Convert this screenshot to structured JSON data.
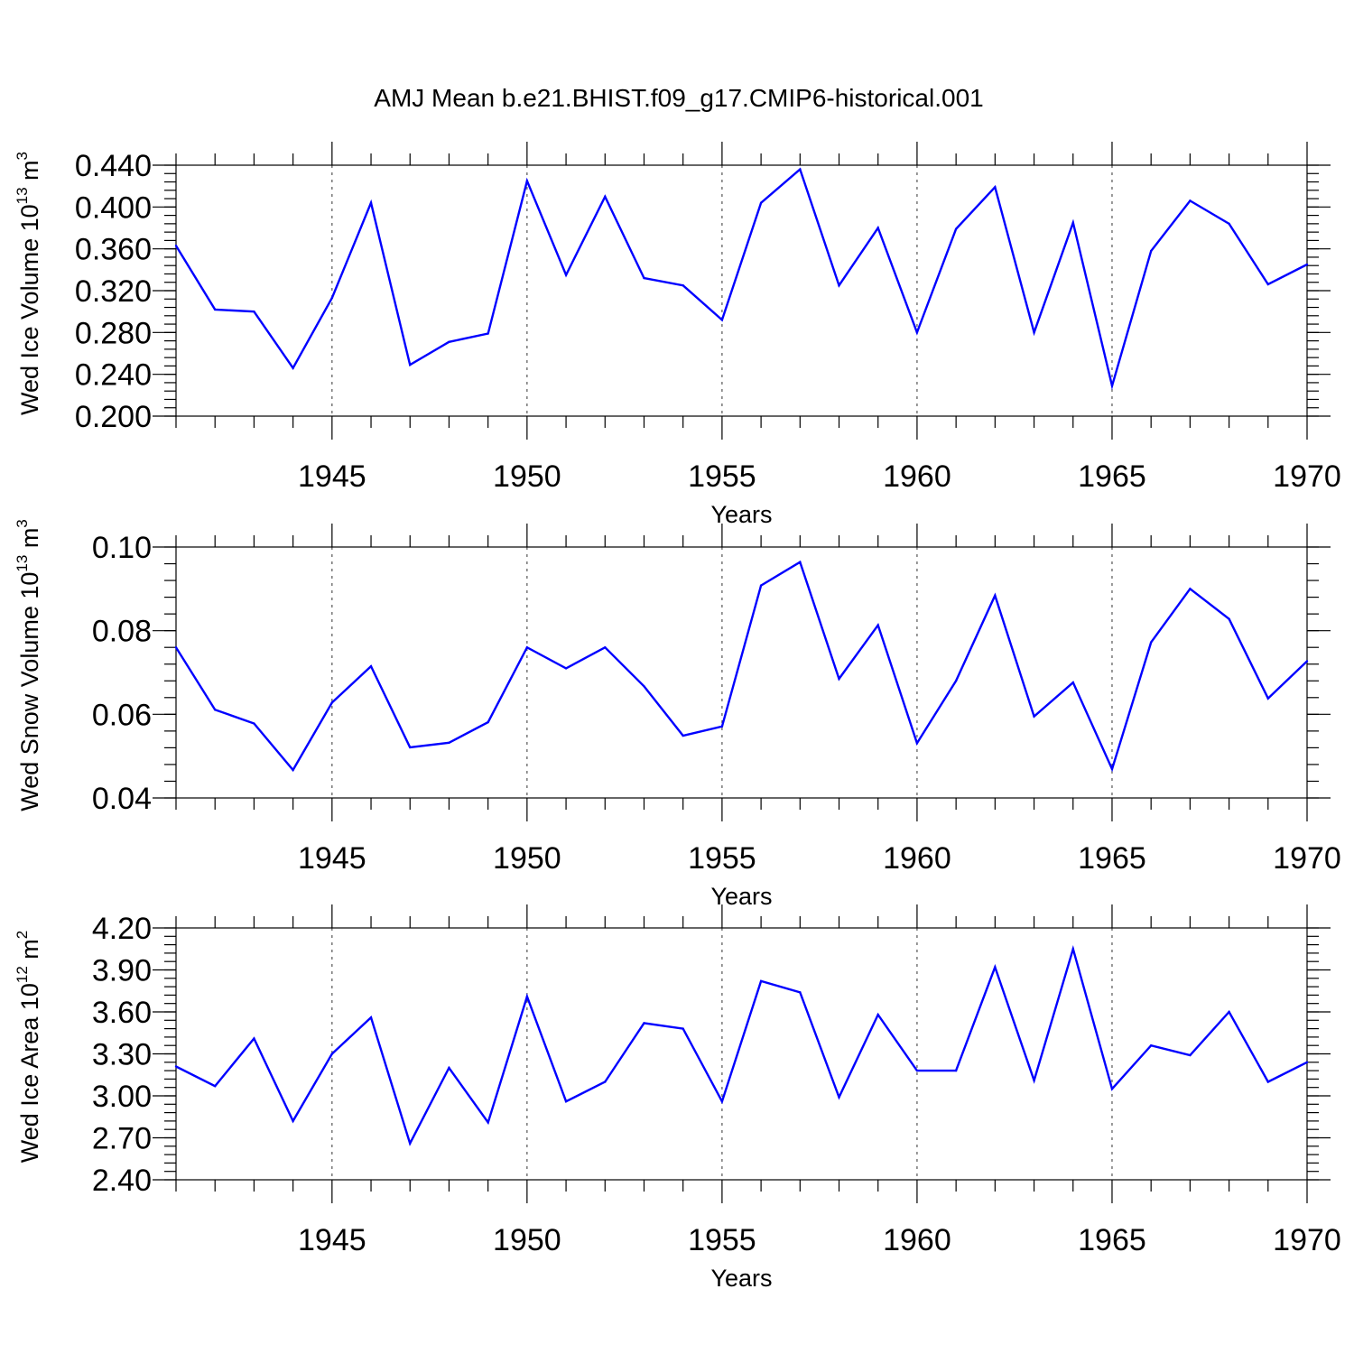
{
  "chart_data": {
    "title": "AMJ Mean b.e21.BHIST.f09_g17.CMIP6-historical.001",
    "series_color": "#0000ff",
    "panels": [
      {
        "type": "line",
        "ylabel_main": "Wed Ice Volume 10",
        "ylabel_exp": "13",
        "ylabel_unit": " m",
        "ylabel_unit_exp": "3",
        "xlabel": "Years",
        "xlim": [
          1941,
          1970
        ],
        "ylim": [
          0.2,
          0.44
        ],
        "ytick_values": [
          0.2,
          0.24,
          0.28,
          0.32,
          0.36,
          0.4,
          0.44
        ],
        "ytick_labels": [
          "0.200",
          "0.240",
          "0.280",
          "0.320",
          "0.360",
          "0.400",
          "0.440"
        ],
        "ytick_minor_step": 0.008,
        "xtick_values": [
          1945,
          1950,
          1955,
          1960,
          1965,
          1970
        ],
        "xtick_labels": [
          "1945",
          "1950",
          "1955",
          "1960",
          "1965",
          "1970"
        ],
        "grid_x": [
          1945,
          1950,
          1955,
          1960,
          1965
        ],
        "x": [
          1941,
          1942,
          1943,
          1944,
          1945,
          1946,
          1947,
          1948,
          1949,
          1950,
          1951,
          1952,
          1953,
          1954,
          1955,
          1956,
          1957,
          1958,
          1959,
          1960,
          1961,
          1962,
          1963,
          1964,
          1965,
          1966,
          1967,
          1968,
          1969,
          1970
        ],
        "y": [
          0.363,
          0.302,
          0.3,
          0.246,
          0.313,
          0.404,
          0.249,
          0.271,
          0.279,
          0.425,
          0.335,
          0.41,
          0.332,
          0.325,
          0.292,
          0.404,
          0.436,
          0.325,
          0.38,
          0.28,
          0.379,
          0.419,
          0.28,
          0.385,
          0.229,
          0.358,
          0.406,
          0.384,
          0.326,
          0.345
        ]
      },
      {
        "type": "line",
        "ylabel_main": "Wed Snow Volume 10",
        "ylabel_exp": "13",
        "ylabel_unit": " m",
        "ylabel_unit_exp": "3",
        "xlabel": "Years",
        "xlim": [
          1941,
          1970
        ],
        "ylim": [
          0.04,
          0.1
        ],
        "ytick_values": [
          0.04,
          0.06,
          0.08,
          0.1
        ],
        "ytick_labels": [
          "0.04",
          "0.06",
          "0.08",
          "0.10"
        ],
        "ytick_minor_step": 0.004,
        "xtick_values": [
          1945,
          1950,
          1955,
          1960,
          1965,
          1970
        ],
        "xtick_labels": [
          "1945",
          "1950",
          "1955",
          "1960",
          "1965",
          "1970"
        ],
        "grid_x": [
          1945,
          1950,
          1955,
          1960,
          1965
        ],
        "x": [
          1941,
          1942,
          1943,
          1944,
          1945,
          1946,
          1947,
          1948,
          1949,
          1950,
          1951,
          1952,
          1953,
          1954,
          1955,
          1956,
          1957,
          1958,
          1959,
          1960,
          1961,
          1962,
          1963,
          1964,
          1965,
          1966,
          1967,
          1968,
          1969,
          1970
        ],
        "y": [
          0.076,
          0.0611,
          0.0578,
          0.0467,
          0.0628,
          0.0715,
          0.0521,
          0.0532,
          0.0581,
          0.076,
          0.071,
          0.076,
          0.0667,
          0.0549,
          0.0571,
          0.0908,
          0.0964,
          0.0685,
          0.0813,
          0.0531,
          0.068,
          0.0884,
          0.0595,
          0.0676,
          0.0469,
          0.0772,
          0.09,
          0.0828,
          0.0638,
          0.0727
        ]
      },
      {
        "type": "line",
        "ylabel_main": "Wed Ice Area 10",
        "ylabel_exp": "12",
        "ylabel_unit": " m",
        "ylabel_unit_exp": "2",
        "xlabel": "Years",
        "xlim": [
          1941,
          1970
        ],
        "ylim": [
          2.4,
          4.2
        ],
        "ytick_values": [
          2.4,
          2.7,
          3.0,
          3.3,
          3.6,
          3.9,
          4.2
        ],
        "ytick_labels": [
          "2.40",
          "2.70",
          "3.00",
          "3.30",
          "3.60",
          "3.90",
          "4.20"
        ],
        "ytick_minor_step": 0.06,
        "xtick_values": [
          1945,
          1950,
          1955,
          1960,
          1965,
          1970
        ],
        "xtick_labels": [
          "1945",
          "1950",
          "1955",
          "1960",
          "1965",
          "1970"
        ],
        "grid_x": [
          1945,
          1950,
          1955,
          1960,
          1965
        ],
        "x": [
          1941,
          1942,
          1943,
          1944,
          1945,
          1946,
          1947,
          1948,
          1949,
          1950,
          1951,
          1952,
          1953,
          1954,
          1955,
          1956,
          1957,
          1958,
          1959,
          1960,
          1961,
          1962,
          1963,
          1964,
          1965,
          1966,
          1967,
          1968,
          1969,
          1970
        ],
        "y": [
          3.21,
          3.07,
          3.41,
          2.82,
          3.3,
          3.56,
          2.66,
          3.2,
          2.81,
          3.71,
          2.96,
          3.1,
          3.52,
          3.48,
          2.96,
          3.82,
          3.74,
          2.99,
          3.58,
          3.18,
          3.18,
          3.92,
          3.11,
          4.05,
          3.05,
          3.36,
          3.29,
          3.6,
          3.1,
          3.24
        ]
      }
    ]
  }
}
